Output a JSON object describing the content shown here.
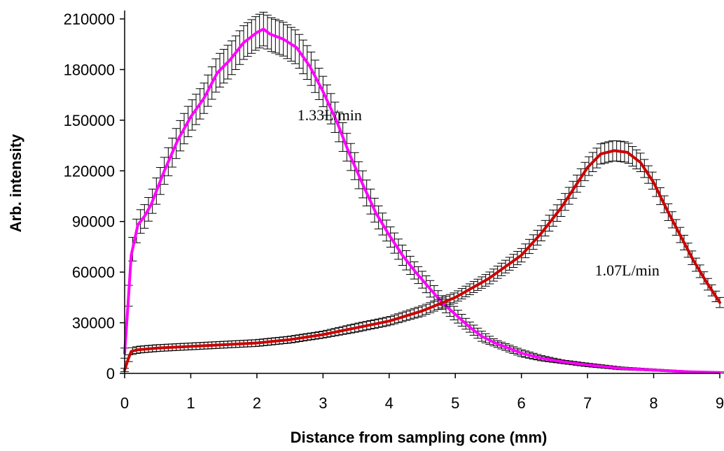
{
  "chart_data": {
    "type": "line",
    "title": "",
    "xlabel": "Distance from sampling cone (mm)",
    "ylabel": "Arb. intensity",
    "xlim": [
      0,
      9
    ],
    "ylim": [
      0,
      215000
    ],
    "xticks": [
      0,
      1,
      2,
      3,
      4,
      5,
      6,
      7,
      8,
      9
    ],
    "yticks": [
      0,
      30000,
      60000,
      90000,
      120000,
      150000,
      180000,
      210000
    ],
    "x_tick_labels": [
      "0",
      "1",
      "2",
      "3",
      "4",
      "5",
      "6",
      "7",
      "8",
      "9"
    ],
    "y_tick_labels": [
      "0",
      "30000",
      "60000",
      "90000",
      "120000",
      "150000",
      "180000",
      "210000"
    ],
    "grid": false,
    "legend": "none",
    "error_bars": true,
    "series": [
      {
        "color": "#ff00ff",
        "x": [
          0,
          0.05,
          0.1,
          0.2,
          0.3,
          0.4,
          0.5,
          0.6,
          0.8,
          1.0,
          1.2,
          1.4,
          1.6,
          1.8,
          2.0,
          2.1,
          2.2,
          2.4,
          2.6,
          2.8,
          3.0,
          3.2,
          3.4,
          3.6,
          3.8,
          4.0,
          4.2,
          4.4,
          4.6,
          4.8,
          5.0,
          5.2,
          5.4,
          5.6,
          5.8,
          6.0,
          6.3,
          6.6,
          7.0,
          7.5,
          8.0,
          8.5,
          9.0
        ],
        "y": [
          12000,
          40000,
          70000,
          88000,
          93000,
          100000,
          110000,
          120000,
          138000,
          152000,
          163000,
          178000,
          186000,
          196000,
          202000,
          204000,
          201000,
          198000,
          193000,
          182000,
          167000,
          150000,
          130000,
          112000,
          95000,
          82000,
          70000,
          60000,
          51000,
          42000,
          35000,
          28000,
          22000,
          18000,
          15000,
          12000,
          9000,
          7000,
          5000,
          3000,
          2000,
          1000,
          500
        ],
        "error": [
          3000,
          6000,
          7000,
          7000,
          7000,
          7000,
          8000,
          8000,
          9000,
          9000,
          9000,
          10000,
          10000,
          10000,
          10000,
          10000,
          10000,
          10000,
          10000,
          10000,
          9000,
          9000,
          8000,
          8000,
          7000,
          6000,
          6000,
          5000,
          5000,
          4000,
          4000,
          3000,
          3000,
          2000,
          2000,
          2000,
          1500,
          1000,
          1000,
          800,
          600,
          500,
          400
        ]
      },
      {
        "color": "#cc0000",
        "x": [
          0,
          0.05,
          0.1,
          0.2,
          0.5,
          1.0,
          1.5,
          2.0,
          2.5,
          3.0,
          3.5,
          4.0,
          4.5,
          5.0,
          5.5,
          6.0,
          6.3,
          6.6,
          6.8,
          7.0,
          7.2,
          7.4,
          7.6,
          7.8,
          8.0,
          8.2,
          8.4,
          8.6,
          8.8,
          9.0
        ],
        "y": [
          2000,
          8000,
          13000,
          14000,
          15000,
          16000,
          17000,
          18000,
          20000,
          23000,
          27000,
          31000,
          37000,
          45000,
          56000,
          70000,
          83000,
          98000,
          110000,
          122000,
          130000,
          132000,
          131000,
          125000,
          113000,
          97000,
          82000,
          67000,
          54000,
          42000
        ],
        "error": [
          1000,
          2000,
          2000,
          2000,
          2000,
          2000,
          2000,
          2000,
          2000,
          2000,
          2500,
          2500,
          3000,
          3000,
          3500,
          4000,
          4500,
          5000,
          5000,
          5500,
          6000,
          6000,
          6000,
          5500,
          5000,
          5000,
          4500,
          4000,
          3500,
          3000
        ]
      }
    ],
    "annotations": [
      {
        "text": "1.33L/min",
        "x": 3.1,
        "y": 150000
      },
      {
        "text": "1.07L/min",
        "x": 7.6,
        "y": 58000
      }
    ]
  }
}
